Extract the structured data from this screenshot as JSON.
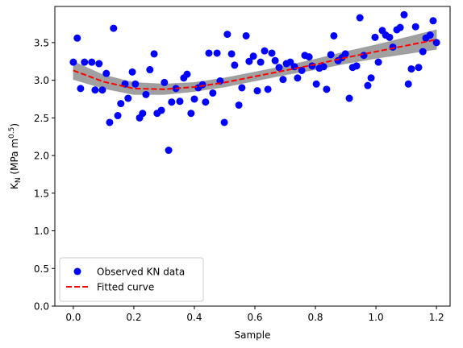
{
  "chart_data": {
    "type": "scatter",
    "xlabel": "Sample",
    "ylabel": {
      "base": "K",
      "sub": "N",
      "mid": " (MPa m",
      "sup": "0.5",
      "end": ")"
    },
    "xlim": [
      -0.061,
      1.245
    ],
    "ylim": [
      0,
      3.98
    ],
    "xticks": [
      {
        "value": 0,
        "label": "0.0"
      },
      0.2,
      0.4,
      0.6,
      0.8,
      {
        "value": 1,
        "label": "1.0"
      },
      1.2
    ],
    "yticks": [
      {
        "value": 0,
        "label": "0.0"
      },
      0.5,
      {
        "value": 1,
        "label": "1.0"
      },
      1.5,
      {
        "value": 2,
        "label": "2.0"
      },
      2.5,
      {
        "value": 3,
        "label": "3.0"
      },
      3.5
    ],
    "legend": "lower left",
    "band": {
      "color": "#808080",
      "x": [
        0,
        0.1,
        0.2,
        0.3,
        0.4,
        0.5,
        0.6,
        0.7,
        0.8,
        0.9,
        1.0,
        1.1,
        1.2
      ],
      "lower": [
        3.01,
        2.89,
        2.81,
        2.81,
        2.85,
        2.91,
        2.99,
        3.07,
        3.14,
        3.22,
        3.29,
        3.35,
        3.41
      ],
      "upper": [
        3.25,
        3.07,
        2.97,
        2.95,
        2.97,
        3.03,
        3.11,
        3.19,
        3.28,
        3.38,
        3.47,
        3.57,
        3.67
      ]
    },
    "series": [
      {
        "name": "Observed KN data",
        "kind": "points",
        "color": "#0000ff",
        "x": [
          0.0,
          0.013,
          0.024,
          0.037,
          0.061,
          0.072,
          0.085,
          0.096,
          0.109,
          0.12,
          0.133,
          0.147,
          0.157,
          0.171,
          0.181,
          0.195,
          0.205,
          0.219,
          0.229,
          0.24,
          0.253,
          0.267,
          0.277,
          0.291,
          0.301,
          0.315,
          0.325,
          0.339,
          0.352,
          0.365,
          0.376,
          0.389,
          0.4,
          0.413,
          0.427,
          0.437,
          0.448,
          0.461,
          0.475,
          0.485,
          0.499,
          0.509,
          0.523,
          0.533,
          0.547,
          0.557,
          0.571,
          0.581,
          0.595,
          0.608,
          0.619,
          0.632,
          0.643,
          0.656,
          0.667,
          0.68,
          0.693,
          0.704,
          0.717,
          0.731,
          0.741,
          0.755,
          0.765,
          0.779,
          0.789,
          0.803,
          0.813,
          0.827,
          0.837,
          0.851,
          0.861,
          0.875,
          0.888,
          0.899,
          0.912,
          0.923,
          0.936,
          0.947,
          0.96,
          0.973,
          0.984,
          0.997,
          1.008,
          1.021,
          1.032,
          1.045,
          1.056,
          1.069,
          1.08,
          1.093,
          1.107,
          1.117,
          1.131,
          1.141,
          1.155,
          1.165,
          1.179,
          1.189,
          1.2
        ],
        "values": [
          3.24,
          3.56,
          2.89,
          3.24,
          3.24,
          2.87,
          3.22,
          2.87,
          3.09,
          2.44,
          3.69,
          2.53,
          2.69,
          2.95,
          2.76,
          3.11,
          2.95,
          2.5,
          2.56,
          2.81,
          3.14,
          3.35,
          2.56,
          2.6,
          2.97,
          2.07,
          2.71,
          2.89,
          2.72,
          3.03,
          3.08,
          2.56,
          2.75,
          2.9,
          2.94,
          2.71,
          3.36,
          2.83,
          3.36,
          2.99,
          2.44,
          3.61,
          3.35,
          3.2,
          2.67,
          2.9,
          3.59,
          3.25,
          3.32,
          2.86,
          3.24,
          3.39,
          2.88,
          3.36,
          3.26,
          3.17,
          3.01,
          3.22,
          3.24,
          3.18,
          3.03,
          3.13,
          3.33,
          3.31,
          3.19,
          2.95,
          3.16,
          3.18,
          2.88,
          3.34,
          3.59,
          3.26,
          3.3,
          3.35,
          2.76,
          3.17,
          3.19,
          3.83,
          3.33,
          2.93,
          3.03,
          3.57,
          3.24,
          3.66,
          3.6,
          3.57,
          3.44,
          3.67,
          3.7,
          3.87,
          2.95,
          3.15,
          3.71,
          3.17,
          3.38,
          3.56,
          3.6,
          3.79,
          3.5
        ]
      },
      {
        "name": "Fitted curve",
        "kind": "line",
        "color": "#ff0000",
        "dashed": true,
        "x": [
          0,
          0.1,
          0.2,
          0.3,
          0.4,
          0.5,
          0.6,
          0.7,
          0.8,
          0.9,
          1.0,
          1.1,
          1.2
        ],
        "values": [
          3.13,
          2.98,
          2.89,
          2.88,
          2.91,
          2.97,
          3.05,
          3.13,
          3.21,
          3.3,
          3.38,
          3.46,
          3.54
        ]
      }
    ]
  }
}
